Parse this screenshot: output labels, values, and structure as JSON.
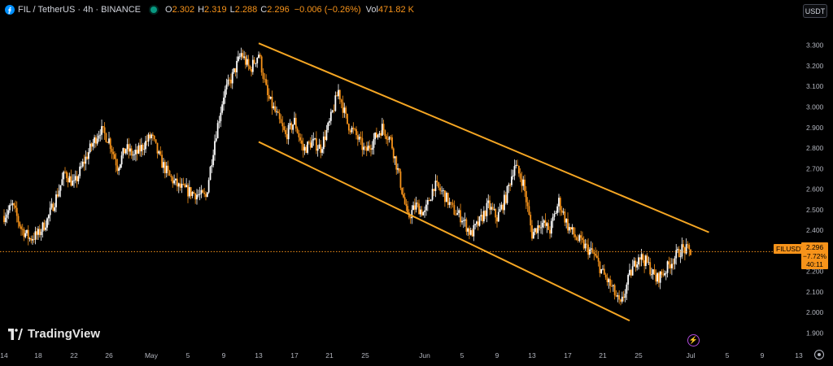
{
  "header": {
    "symbol": "FIL / TetherUS · 4h · BINANCE",
    "coin_icon_glyph": "⨎",
    "o_label": "O",
    "o_value": "2.302",
    "h_label": "H",
    "h_value": "2.319",
    "l_label": "L",
    "l_value": "2.288",
    "c_label": "C",
    "c_value": "2.296",
    "change": "−0.006 (−0.26%)",
    "vol_label": "Vol",
    "vol_value": "471.82 K"
  },
  "currency_button": "USDT",
  "price_label": {
    "symbol": "FILUSDT",
    "price": "2.296",
    "change": "−7.72%",
    "countdown": "40:11"
  },
  "branding": "TradingView",
  "colors": {
    "background": "#000000",
    "candle": "#f7931a",
    "trendline": "#f5a623",
    "grid_text": "#b2b5be"
  },
  "icons": {
    "coin": "filecoin-icon",
    "status": "market-open-dot-icon",
    "alert": "lightning-icon",
    "settings": "settings-gear-icon",
    "logo": "tradingview-logo-icon"
  },
  "chart_data": {
    "type": "candlestick",
    "y_axis_ticks": [
      "3.300",
      "3.200",
      "3.100",
      "3.000",
      "2.900",
      "2.800",
      "2.700",
      "2.600",
      "2.500",
      "2.400",
      "2.300",
      "2.200",
      "2.100",
      "2.000",
      "1.900"
    ],
    "ylim": [
      1.87,
      3.37
    ],
    "x_axis_ticks": [
      "14",
      "18",
      "22",
      "26",
      "May",
      "5",
      "9",
      "13",
      "17",
      "21",
      "25",
      "Jun",
      "5",
      "9",
      "13",
      "17",
      "21",
      "25",
      "Jul",
      "5",
      "9",
      "13"
    ],
    "x_tick_dates": [
      "2024-04-14",
      "2024-04-18",
      "2024-04-22",
      "2024-04-26",
      "2024-05-01",
      "2024-05-05",
      "2024-05-09",
      "2024-05-13",
      "2024-05-17",
      "2024-05-21",
      "2024-05-25",
      "2024-06-01",
      "2024-06-05",
      "2024-06-09",
      "2024-06-13",
      "2024-06-17",
      "2024-06-21",
      "2024-06-25",
      "2024-07-01",
      "2024-07-05",
      "2024-07-09",
      "2024-07-13"
    ],
    "current_price": 2.296,
    "close_path": [
      [
        "2024-04-14",
        2.47
      ],
      [
        "2024-04-15",
        2.52
      ],
      [
        "2024-04-16",
        2.41
      ],
      [
        "2024-04-17",
        2.36
      ],
      [
        "2024-04-18",
        2.38
      ],
      [
        "2024-04-19",
        2.45
      ],
      [
        "2024-04-20",
        2.56
      ],
      [
        "2024-04-21",
        2.68
      ],
      [
        "2024-04-22",
        2.62
      ],
      [
        "2024-04-23",
        2.72
      ],
      [
        "2024-04-24",
        2.81
      ],
      [
        "2024-04-25",
        2.89
      ],
      [
        "2024-04-26",
        2.84
      ],
      [
        "2024-04-27",
        2.71
      ],
      [
        "2024-04-28",
        2.8
      ],
      [
        "2024-04-29",
        2.76
      ],
      [
        "2024-05-01",
        2.86
      ],
      [
        "2024-05-02",
        2.74
      ],
      [
        "2024-05-03",
        2.66
      ],
      [
        "2024-05-04",
        2.61
      ],
      [
        "2024-05-05",
        2.59
      ],
      [
        "2024-05-07",
        2.56
      ],
      [
        "2024-05-08",
        2.84
      ],
      [
        "2024-05-09",
        3.06
      ],
      [
        "2024-05-10",
        3.15
      ],
      [
        "2024-05-11",
        3.26
      ],
      [
        "2024-05-12",
        3.18
      ],
      [
        "2024-05-13",
        3.26
      ],
      [
        "2024-05-14",
        3.05
      ],
      [
        "2024-05-15",
        2.96
      ],
      [
        "2024-05-16",
        2.86
      ],
      [
        "2024-05-17",
        2.93
      ],
      [
        "2024-05-18",
        2.79
      ],
      [
        "2024-05-19",
        2.83
      ],
      [
        "2024-05-20",
        2.8
      ],
      [
        "2024-05-21",
        2.92
      ],
      [
        "2024-05-22",
        3.08
      ],
      [
        "2024-05-23",
        2.92
      ],
      [
        "2024-05-24",
        2.86
      ],
      [
        "2024-05-25",
        2.78
      ],
      [
        "2024-05-26",
        2.84
      ],
      [
        "2024-05-27",
        2.9
      ],
      [
        "2024-05-28",
        2.84
      ],
      [
        "2024-05-29",
        2.66
      ],
      [
        "2024-05-30",
        2.46
      ],
      [
        "2024-05-31",
        2.52
      ],
      [
        "2024-06-01",
        2.48
      ],
      [
        "2024-06-02",
        2.62
      ],
      [
        "2024-06-03",
        2.58
      ],
      [
        "2024-06-04",
        2.5
      ],
      [
        "2024-06-05",
        2.46
      ],
      [
        "2024-06-06",
        2.38
      ],
      [
        "2024-06-07",
        2.44
      ],
      [
        "2024-06-08",
        2.52
      ],
      [
        "2024-06-09",
        2.46
      ],
      [
        "2024-06-10",
        2.56
      ],
      [
        "2024-06-11",
        2.72
      ],
      [
        "2024-06-12",
        2.63
      ],
      [
        "2024-06-13",
        2.38
      ],
      [
        "2024-06-14",
        2.44
      ],
      [
        "2024-06-15",
        2.4
      ],
      [
        "2024-06-16",
        2.54
      ],
      [
        "2024-06-17",
        2.42
      ],
      [
        "2024-06-18",
        2.36
      ],
      [
        "2024-06-19",
        2.32
      ],
      [
        "2024-06-20",
        2.28
      ],
      [
        "2024-06-21",
        2.19
      ],
      [
        "2024-06-22",
        2.12
      ],
      [
        "2024-06-23",
        2.03
      ],
      [
        "2024-06-24",
        2.18
      ],
      [
        "2024-06-25",
        2.28
      ],
      [
        "2024-06-26",
        2.24
      ],
      [
        "2024-06-27",
        2.16
      ],
      [
        "2024-06-28",
        2.2
      ],
      [
        "2024-06-29",
        2.26
      ],
      [
        "2024-06-30",
        2.31
      ],
      [
        "2024-07-01",
        2.296
      ]
    ],
    "trendlines": [
      {
        "name": "upper-channel",
        "start": [
          "2024-05-13",
          3.31
        ],
        "end": [
          "2024-07-03",
          2.39
        ]
      },
      {
        "name": "lower-channel",
        "start": [
          "2024-05-13",
          2.83
        ],
        "end": [
          "2024-06-24",
          1.96
        ]
      }
    ],
    "horizontal_line": {
      "price": 2.296,
      "style": "dotted"
    },
    "grid": false
  }
}
